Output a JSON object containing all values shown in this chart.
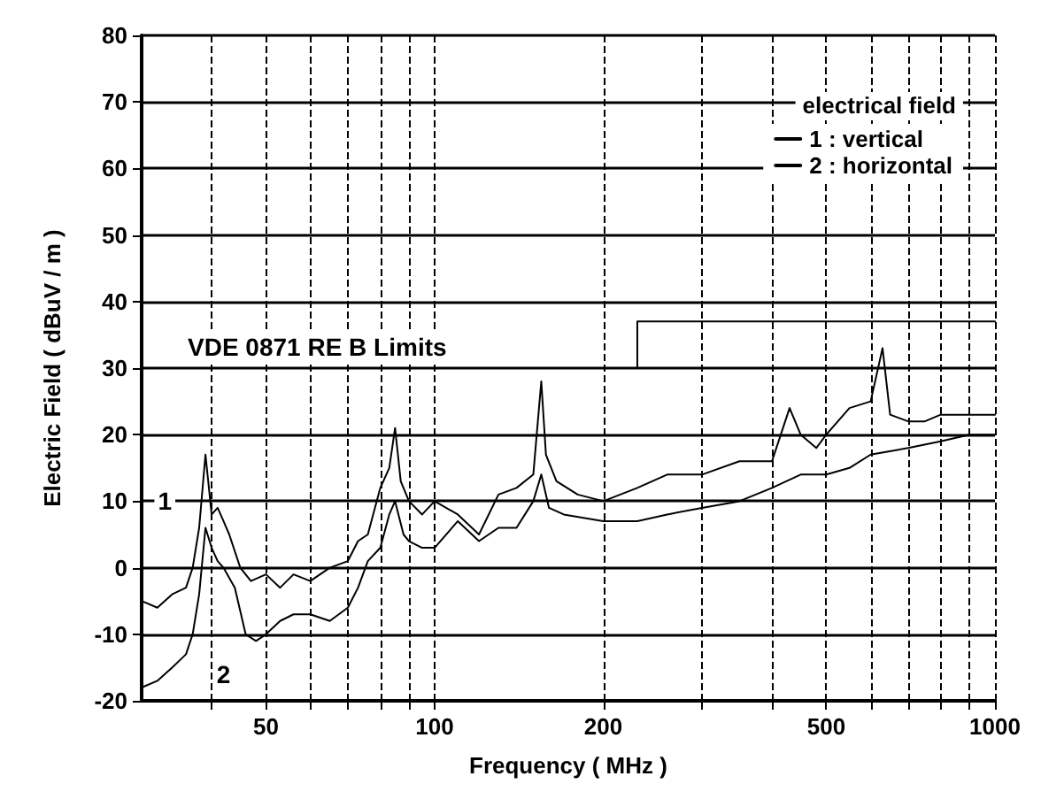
{
  "chart_data": {
    "type": "line",
    "xlabel": "Frequency ( MHz )",
    "ylabel": "Electric Field ( dBuV / m )",
    "log": "x",
    "xlim": [
      30,
      1000
    ],
    "ylim": [
      -20,
      80
    ],
    "xticks": [
      {
        "value": 40,
        "label": null
      },
      50,
      {
        "value": 60,
        "label": null
      },
      {
        "value": 70,
        "label": null
      },
      {
        "value": 80,
        "label": null
      },
      {
        "value": 90,
        "label": null
      },
      100,
      200,
      {
        "value": 300,
        "label": null
      },
      {
        "value": 400,
        "label": null
      },
      500,
      {
        "value": 600,
        "label": null
      },
      {
        "value": 700,
        "label": null
      },
      {
        "value": 800,
        "label": null
      },
      {
        "value": 900,
        "label": null
      },
      1000
    ],
    "yticks": [
      -20,
      -10,
      0,
      10,
      20,
      30,
      40,
      50,
      60,
      70,
      80
    ],
    "grid": true,
    "legend": "top right",
    "legend_title": "electrical field",
    "line_style": "solid",
    "marker": "none",
    "series": [
      {
        "name": "1 : vertical",
        "color": "#000000",
        "x": [
          30,
          32,
          34,
          36,
          37,
          38,
          39,
          40,
          41,
          42,
          43,
          45,
          47,
          50,
          53,
          56,
          60,
          65,
          70,
          73,
          76,
          80,
          83,
          85,
          87,
          90,
          95,
          100,
          110,
          120,
          130,
          140,
          150,
          155,
          158,
          165,
          180,
          200,
          230,
          260,
          300,
          350,
          400,
          430,
          450,
          480,
          500,
          550,
          600,
          630,
          650,
          700,
          750,
          800,
          900,
          1000
        ],
        "values": [
          -5,
          -6,
          -4,
          -3,
          0,
          6,
          17,
          8,
          9,
          7,
          5,
          0,
          -2,
          -1,
          -3,
          -1,
          -2,
          0,
          1,
          4,
          5,
          12,
          15,
          21,
          13,
          10,
          8,
          10,
          8,
          5,
          11,
          12,
          14,
          28,
          17,
          13,
          11,
          10,
          12,
          14,
          14,
          16,
          16,
          24,
          20,
          18,
          20,
          24,
          25,
          33,
          23,
          22,
          22,
          23,
          23,
          23
        ]
      },
      {
        "name": "2 : horizontal",
        "color": "#000000",
        "x": [
          30,
          32,
          34,
          35,
          36,
          37,
          38,
          39,
          40,
          41,
          42,
          44,
          46,
          48,
          50,
          53,
          56,
          60,
          65,
          70,
          73,
          76,
          80,
          83,
          85,
          88,
          90,
          95,
          100,
          110,
          120,
          130,
          140,
          150,
          155,
          160,
          170,
          200,
          230,
          260,
          300,
          350,
          400,
          450,
          500,
          550,
          600,
          700,
          800,
          900,
          1000
        ],
        "values": [
          -18,
          -17,
          -15,
          -14,
          -13,
          -10,
          -4,
          6,
          3,
          1,
          0,
          -3,
          -10,
          -11,
          -10,
          -8,
          -7,
          -7,
          -8,
          -6,
          -3,
          1,
          3,
          8,
          10,
          5,
          4,
          3,
          3,
          7,
          4,
          6,
          6,
          10,
          14,
          9,
          8,
          7,
          7,
          8,
          9,
          10,
          12,
          14,
          14,
          15,
          17,
          18,
          19,
          20,
          20
        ]
      },
      {
        "type": "step",
        "color": "#000000",
        "x": [
          30,
          230,
          1000
        ],
        "values": [
          30,
          37,
          37
        ]
      }
    ],
    "annotations": [
      "VDE 0871 RE B Limits",
      {
        "text": "1",
        "x": 33,
        "y": 10
      },
      {
        "text": "2",
        "x": 42,
        "y": -16
      }
    ]
  }
}
